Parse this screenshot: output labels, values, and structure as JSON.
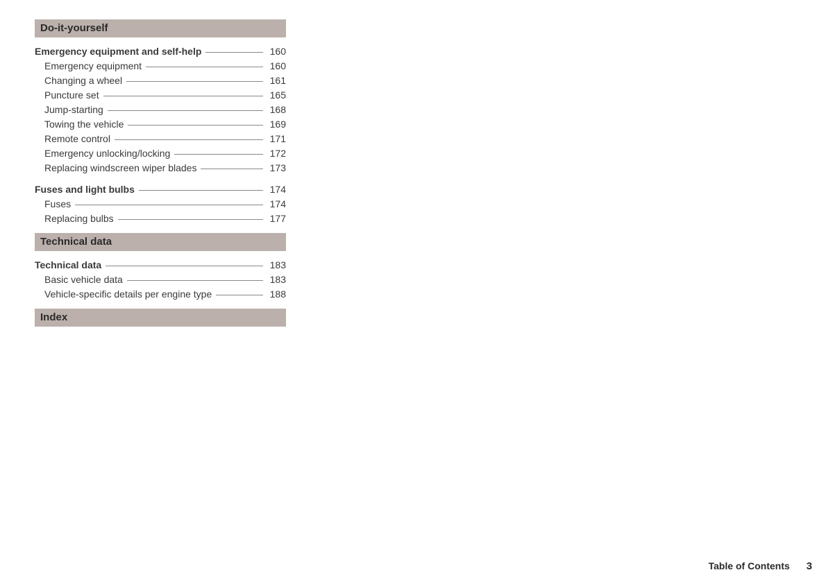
{
  "sections": [
    {
      "title": "Do-it-yourself",
      "groups": [
        {
          "head": {
            "label": "Emergency equipment and self-help",
            "page": "160"
          },
          "items": [
            {
              "label": "Emergency equipment",
              "page": "160"
            },
            {
              "label": "Changing a wheel",
              "page": "161"
            },
            {
              "label": "Puncture set",
              "page": "165"
            },
            {
              "label": "Jump-starting",
              "page": "168"
            },
            {
              "label": "Towing the vehicle",
              "page": "169"
            },
            {
              "label": "Remote control",
              "page": "171"
            },
            {
              "label": "Emergency unlocking/locking",
              "page": "172"
            },
            {
              "label": "Replacing windscreen wiper blades",
              "page": "173"
            }
          ]
        },
        {
          "head": {
            "label": "Fuses and light bulbs",
            "page": "174"
          },
          "items": [
            {
              "label": "Fuses",
              "page": "174"
            },
            {
              "label": "Replacing bulbs",
              "page": "177"
            }
          ]
        }
      ]
    },
    {
      "title": "Technical data",
      "groups": [
        {
          "head": {
            "label": "Technical data",
            "page": "183"
          },
          "items": [
            {
              "label": "Basic vehicle data",
              "page": "183"
            },
            {
              "label": "Vehicle-specific details per engine type",
              "page": "188"
            }
          ]
        }
      ]
    },
    {
      "title": "Index",
      "groups": []
    }
  ],
  "footer": {
    "label": "Table of Contents",
    "page": "3"
  },
  "colors": {
    "background": "#ffffff",
    "header_bg": "#bbb0ab",
    "text": "#2a2a2a",
    "leader": "#888888"
  }
}
